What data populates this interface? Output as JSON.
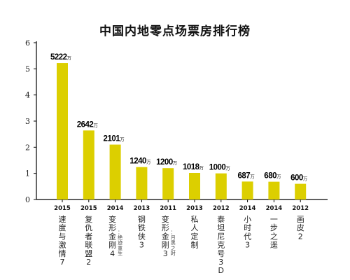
{
  "chart_data": {
    "type": "bar",
    "title": "中国内地零点场票房排行榜",
    "ylim": [
      0,
      6
    ],
    "yticks": [
      "0",
      "1",
      "2",
      "3",
      "4",
      "5",
      "6"
    ],
    "bar_color": "#dccf00",
    "unit": "万",
    "grid": false,
    "categories": [
      {
        "year": "2015",
        "name": "速度与激情7",
        "sub": "",
        "label": "5222",
        "value": 5222
      },
      {
        "year": "2015",
        "name": "复仇者联盟2",
        "sub": "",
        "label": "2642",
        "value": 2642
      },
      {
        "year": "2014",
        "name": "变形金刚4",
        "sub": "：绝迹重生",
        "label": "2101",
        "value": 2101
      },
      {
        "year": "2013",
        "name": "钢铁侠3",
        "sub": "",
        "label": "1240",
        "value": 1240
      },
      {
        "year": "2011",
        "name": "变形金刚3",
        "sub": "：月黑之时",
        "label": "1200",
        "value": 1200
      },
      {
        "year": "2013",
        "name": "私人定制",
        "sub": "",
        "label": "1018",
        "value": 1018
      },
      {
        "year": "2012",
        "name": "泰坦尼克号3D",
        "sub": "",
        "label": "1000",
        "value": 1000
      },
      {
        "year": "2014",
        "name": "小时代3",
        "sub": "",
        "label": "687",
        "value": 687
      },
      {
        "year": "2014",
        "name": "一步之遥",
        "sub": "",
        "label": "680",
        "value": 680
      },
      {
        "year": "2012",
        "name": "画皮2",
        "sub": "",
        "label": "600",
        "value": 600
      }
    ]
  }
}
